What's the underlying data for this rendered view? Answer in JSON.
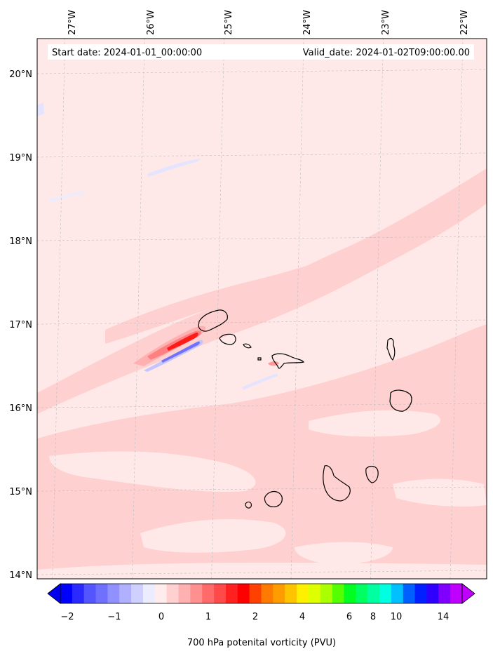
{
  "header": {
    "start_date": "Start date: 2024-01-01_00:00:00",
    "valid_date": "Valid_date: 2024-01-02T09:00:00.00"
  },
  "map": {
    "lon_labels": [
      "27°W",
      "26°W",
      "25°W",
      "24°W",
      "23°W",
      "22°W"
    ],
    "lat_labels": [
      "20°N",
      "19°N",
      "18°N",
      "17°N",
      "16°N",
      "15°N",
      "14°N"
    ],
    "lon_values": [
      -27,
      -26,
      -25,
      -24,
      -23,
      -22
    ],
    "lat_values": [
      20,
      19,
      18,
      17,
      16,
      15,
      14
    ],
    "lon_range": [
      -27.35,
      -21.7
    ],
    "lat_range": [
      13.95,
      20.42
    ],
    "gridlines": true
  },
  "colorbar": {
    "label": "700 hPa potenital vorticity (PVU)",
    "tick_labels": [
      "−2",
      "−1",
      "0",
      "1",
      "2",
      "4",
      "6",
      "8",
      "10",
      "14"
    ],
    "extend": "both",
    "colors": [
      "#0000ff",
      "#2a2aff",
      "#5555ff",
      "#7070ff",
      "#9090ff",
      "#b0b0ff",
      "#d0d0ff",
      "#ececff",
      "#ffecec",
      "#ffd0d0",
      "#ffb0b0",
      "#ff9090",
      "#ff6a6a",
      "#ff4a4a",
      "#ff2020",
      "#ff0000",
      "#ff4000",
      "#ff7a00",
      "#ff9c00",
      "#ffc400",
      "#fff000",
      "#ddff00",
      "#aaff00",
      "#55ff00",
      "#00ff20",
      "#00ff60",
      "#00ffa0",
      "#00ffe0",
      "#00c0ff",
      "#0060ff",
      "#0020ff",
      "#3000ff",
      "#8000ff",
      "#c000ff"
    ],
    "under_color": "#0000ee",
    "over_color": "#c000ff"
  },
  "field_colors": {
    "background": "#ffe8e8",
    "band": "#ffd0d0",
    "light": "#fff3f3",
    "neg_light": "#e4e4ff",
    "neg": "#9090ff",
    "pos": "#ff6060",
    "pos_strong": "#ff1a1a"
  }
}
